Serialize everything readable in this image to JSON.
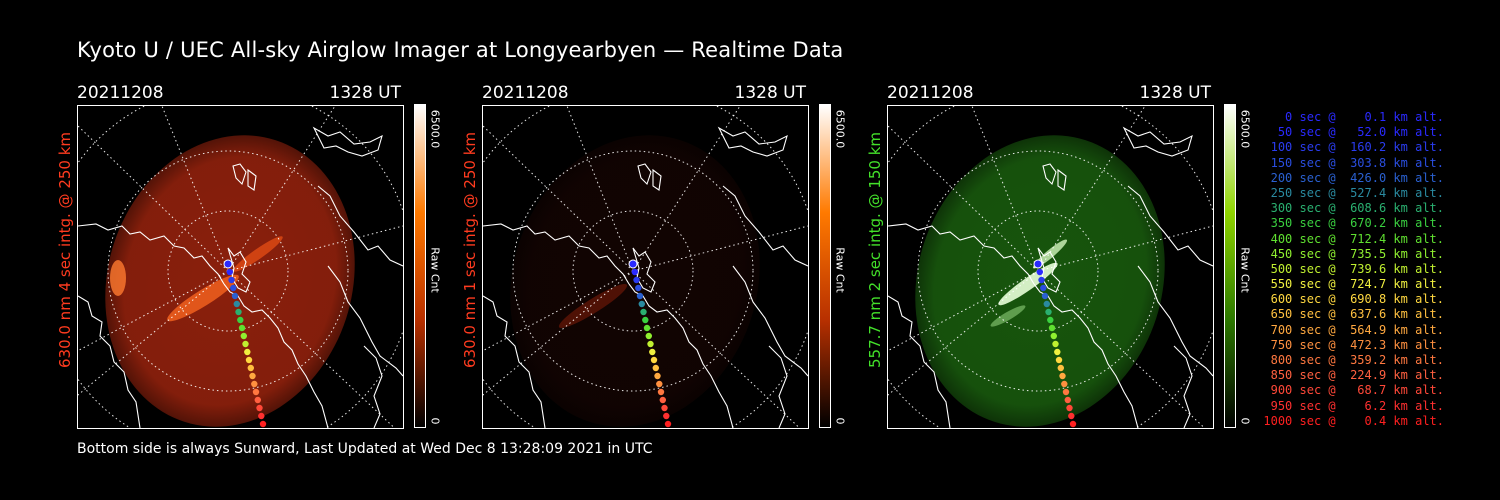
{
  "title": "Kyoto U / UEC All-sky Airglow Imager at Longyearbyen — Realtime Data",
  "footer": "Bottom side is always Sunward, Last Updated at Wed Dec  8 13:28:09 2021 in UTC",
  "panels": [
    {
      "date": "20211208",
      "time": "1328 UT",
      "side_label": "630.0 nm 4 sec intg. @ 250 km",
      "side_color": "#ff3b1f",
      "cbar_max": "6500.0",
      "cbar_min": "0",
      "cbar_unit": "Raw Cnt",
      "image_color": "#b82a10",
      "brightness": 0.75,
      "cbar_gradient": [
        "#000000",
        "#b83000",
        "#ff7a00",
        "#ffffff"
      ]
    },
    {
      "date": "20211208",
      "time": "1328 UT",
      "side_label": "630.0 nm 1 sec intg. @ 250 km",
      "side_color": "#ff3b1f",
      "cbar_max": "6500.0",
      "cbar_min": "0",
      "cbar_unit": "Raw Cnt",
      "image_color": "#3a0c06",
      "brightness": 0.3,
      "cbar_gradient": [
        "#000000",
        "#b83000",
        "#ff7a00",
        "#ffffff"
      ]
    },
    {
      "date": "20211208",
      "time": "1328 UT",
      "side_label": "557.7 nm 2 sec intg. @ 150 km",
      "side_color": "#43e02a",
      "cbar_max": "6500.0",
      "cbar_min": "0",
      "cbar_unit": "Raw Cnt",
      "image_color": "#1d6a10",
      "brightness": 0.8,
      "cbar_gradient": [
        "#000000",
        "#2c7800",
        "#8fd400",
        "#ffffff"
      ]
    }
  ],
  "legend": [
    {
      "text": "   0 sec @    0.1 km alt.",
      "color": "#2a2aff"
    },
    {
      "text": "  50 sec @   52.0 km alt.",
      "color": "#2a2aff"
    },
    {
      "text": " 100 sec @  160.2 km alt.",
      "color": "#2a3cf0"
    },
    {
      "text": " 150 sec @  303.8 km alt.",
      "color": "#2a4ee0"
    },
    {
      "text": " 200 sec @  426.0 km alt.",
      "color": "#2a60d0"
    },
    {
      "text": " 250 sec @  527.4 km alt.",
      "color": "#2a8aa0"
    },
    {
      "text": " 300 sec @  608.6 km alt.",
      "color": "#2ab070"
    },
    {
      "text": " 350 sec @  670.2 km alt.",
      "color": "#3ad040"
    },
    {
      "text": " 400 sec @  712.4 km alt.",
      "color": "#60e030"
    },
    {
      "text": " 450 sec @  735.5 km alt.",
      "color": "#90f030"
    },
    {
      "text": " 500 sec @  739.6 km alt.",
      "color": "#c0f030"
    },
    {
      "text": " 550 sec @  724.7 km alt.",
      "color": "#f0f040"
    },
    {
      "text": " 600 sec @  690.8 km alt.",
      "color": "#ffd840"
    },
    {
      "text": " 650 sec @  637.6 km alt.",
      "color": "#ffc040"
    },
    {
      "text": " 700 sec @  564.9 km alt.",
      "color": "#ffa840"
    },
    {
      "text": " 750 sec @  472.3 km alt.",
      "color": "#ff9040"
    },
    {
      "text": " 800 sec @  359.2 km alt.",
      "color": "#ff7840"
    },
    {
      "text": " 850 sec @  224.9 km alt.",
      "color": "#ff6040"
    },
    {
      "text": " 900 sec @   68.7 km alt.",
      "color": "#ff4838"
    },
    {
      "text": " 950 sec @    6.2 km alt.",
      "color": "#ff3030"
    },
    {
      "text": "1000 sec @    0.4 km alt.",
      "color": "#ff2020"
    }
  ]
}
